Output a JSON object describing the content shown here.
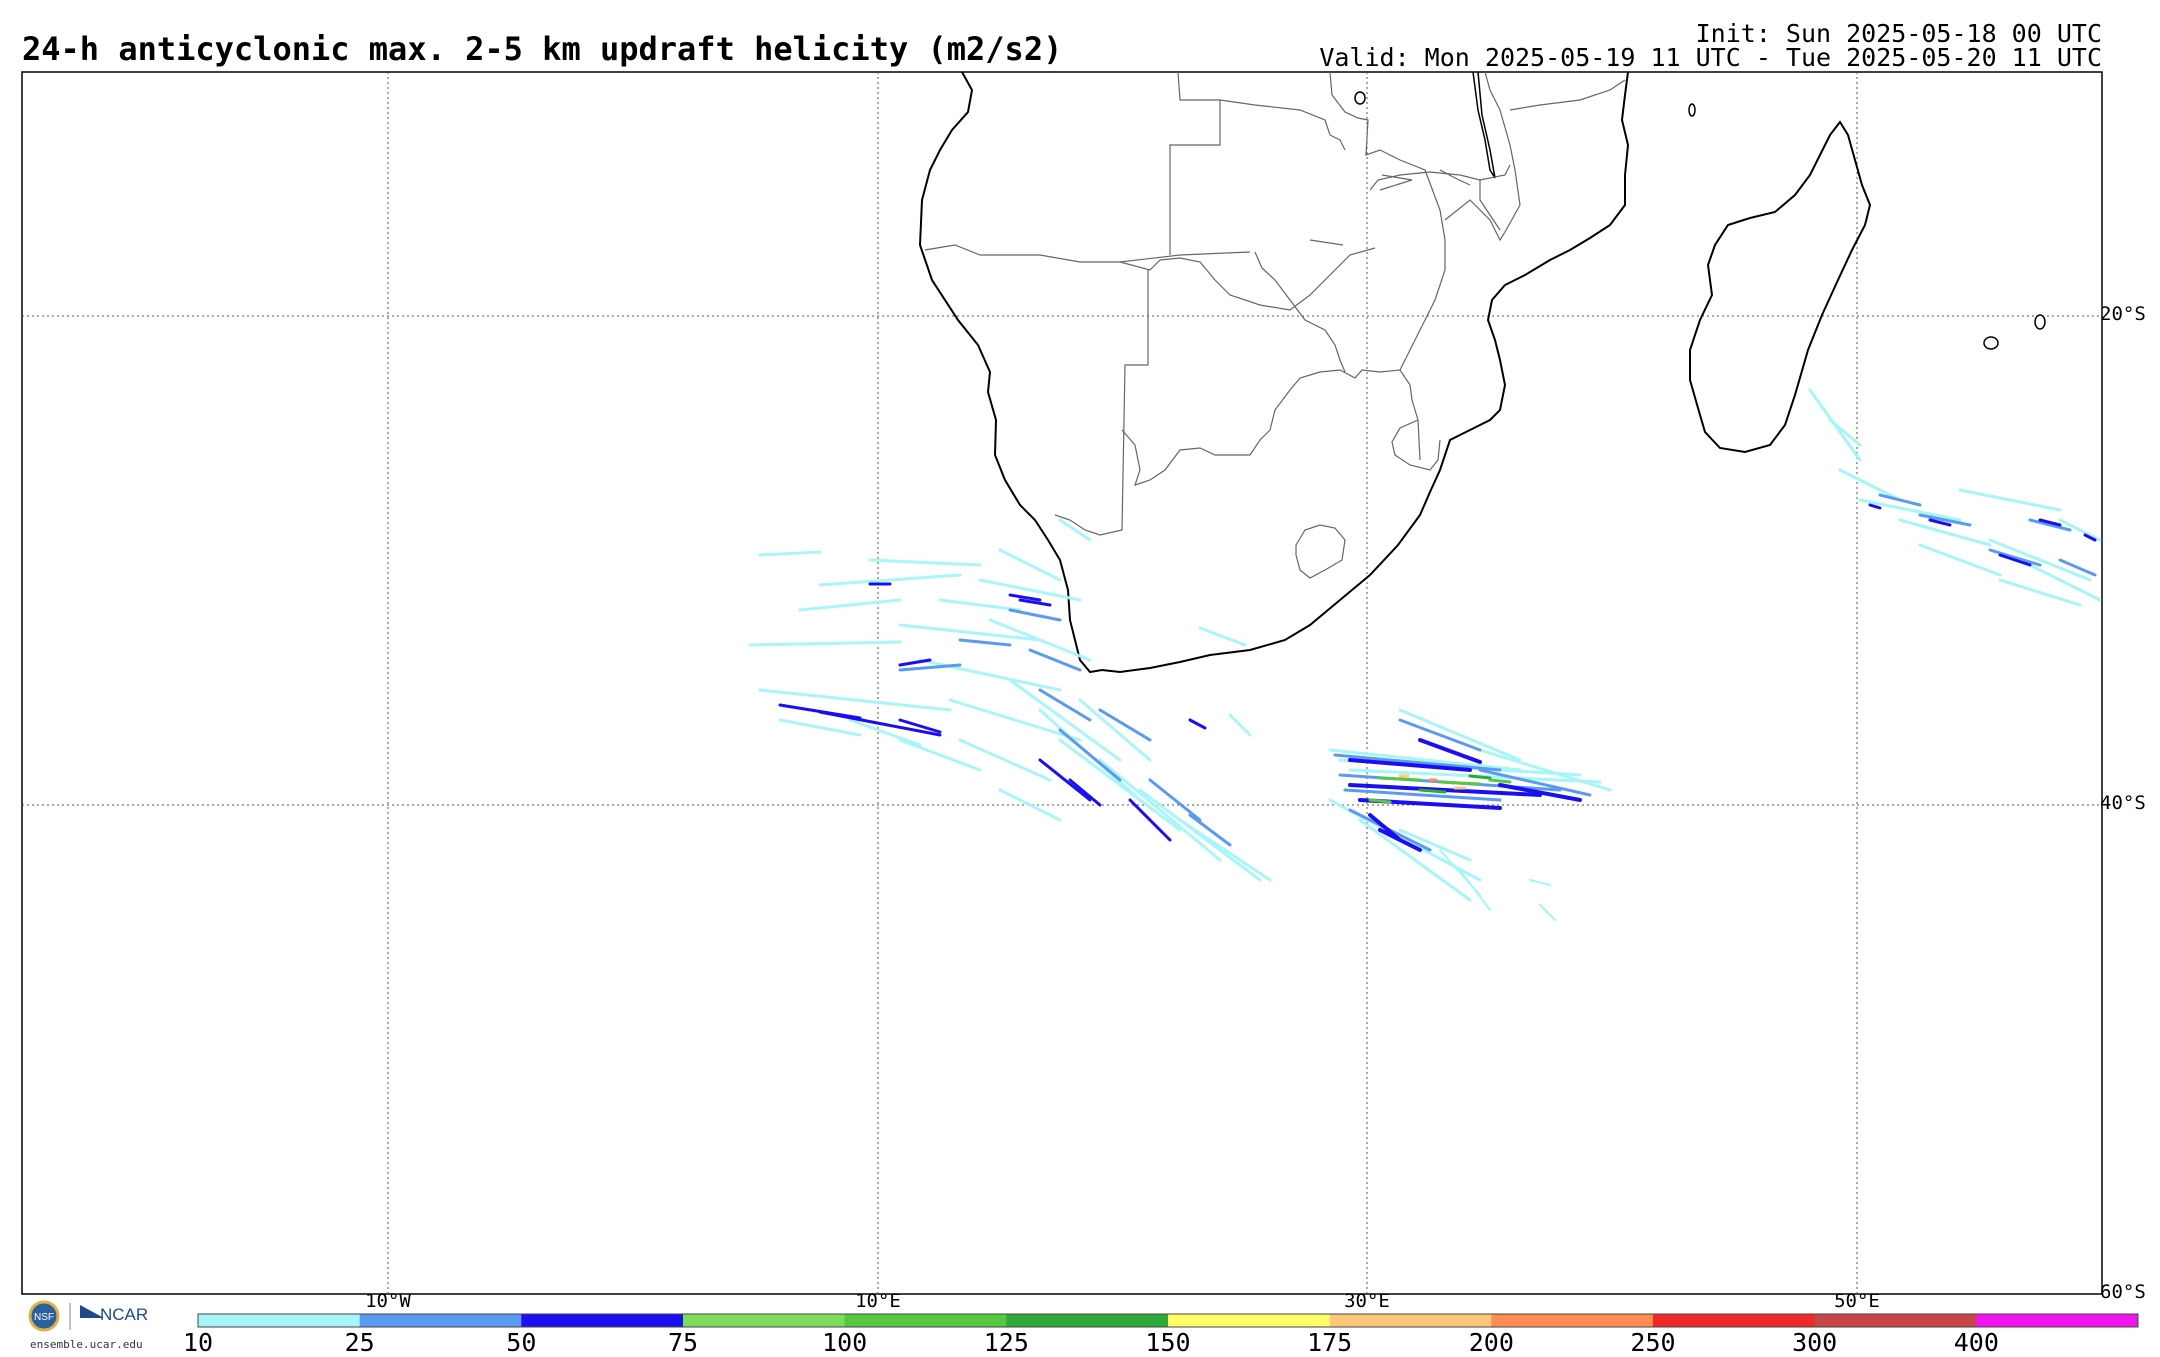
{
  "header": {
    "title": "24-h anticyclonic max. 2-5 km updraft helicity (m2/s2)",
    "init": "Init: Sun 2025-05-18 00 UTC",
    "valid": "Valid: Mon 2025-05-19 11 UTC - Tue 2025-05-20 11 UTC"
  },
  "map": {
    "projection": "cylindrical",
    "lon_range": [
      -25,
      60
    ],
    "lat_range": [
      -60,
      -10
    ],
    "lat_labels": [
      "20°S",
      "40°S",
      "60°S"
    ],
    "lon_labels": [
      "10°W",
      "10°E",
      "30°E",
      "50°E"
    ],
    "gridlines": "dotted",
    "features": [
      "coastline",
      "country-borders"
    ]
  },
  "colorbar": {
    "ticks": [
      "10",
      "25",
      "50",
      "75",
      "100",
      "125",
      "150",
      "175",
      "200",
      "250",
      "300",
      "400"
    ],
    "colors": [
      "#a6f5f7",
      "#5a9bf0",
      "#1a0ff0",
      "#7ddd5a",
      "#55c840",
      "#2fa83a",
      "#ffff66",
      "#ffc878",
      "#ff8c50",
      "#f02828",
      "#c84646",
      "#f014f0"
    ]
  },
  "logos": {
    "ncar": "NCAR",
    "url": "ensemble.ucar.edu",
    "nsf_icon": "nsf-logo-icon",
    "ncar_icon": "ncar-logo-icon"
  }
}
